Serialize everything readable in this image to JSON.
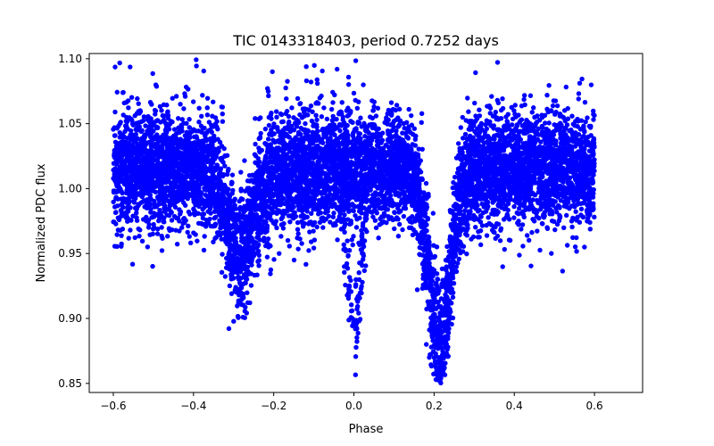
{
  "chart_data": {
    "type": "scatter",
    "title": "TIC 0143318403, period 0.7252 days",
    "xlabel": "Phase",
    "ylabel": "Normalized PDC flux",
    "xlim": [
      -0.66,
      0.72
    ],
    "ylim": [
      0.843,
      1.104
    ],
    "x_ticks": [
      -0.6,
      -0.4,
      -0.2,
      0.0,
      0.2,
      0.4,
      0.6
    ],
    "x_tick_labels": [
      "−0.6",
      "−0.4",
      "−0.2",
      "0.0",
      "0.2",
      "0.4",
      "0.6"
    ],
    "y_ticks": [
      0.85,
      0.9,
      0.95,
      1.0,
      1.05,
      1.1
    ],
    "y_tick_labels": [
      "0.85",
      "0.90",
      "0.95",
      "1.00",
      "1.05",
      "1.10"
    ],
    "grid": false,
    "legend": null,
    "marker_color": "#0000ff",
    "phase_range": [
      -0.6,
      0.6
    ],
    "baseline_flux": 1.015,
    "scatter_sigma": 0.022,
    "point_count": 8000,
    "dips": [
      {
        "name": "primary-eclipse",
        "center_phase": 0.215,
        "width": 0.028,
        "depth": 0.13
      },
      {
        "name": "secondary-eclipse",
        "center_phase": -0.285,
        "width": 0.032,
        "depth": 0.065
      },
      {
        "name": "secondary-eclipse-wrap",
        "center_phase": 0.44,
        "width": 0.032,
        "depth": 0.0
      },
      {
        "name": "central-dip-sparse",
        "center_phase": 0.0,
        "width": 0.025,
        "depth": 0.13
      }
    ]
  }
}
